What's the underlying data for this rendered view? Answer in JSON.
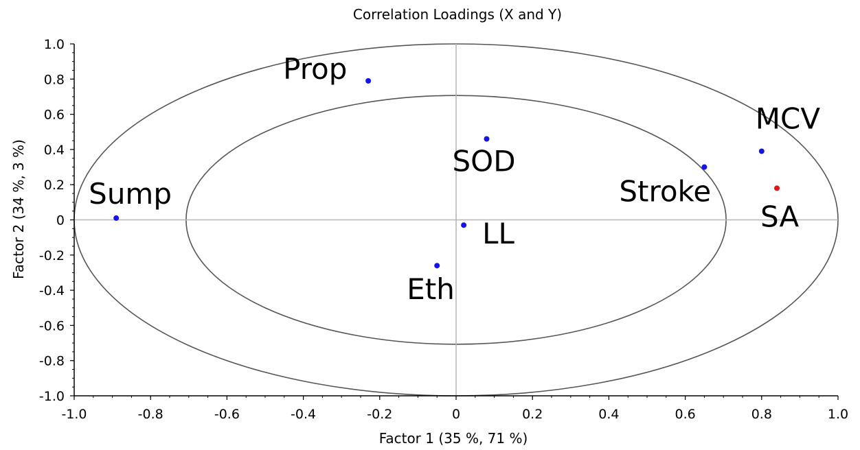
{
  "chart_data": {
    "type": "scatter",
    "title": "Correlation Loadings (X and Y)",
    "xlabel": "Factor 1 (35 %, 71 %)",
    "ylabel": "Factor 2 (34 %, 3 %)",
    "xlim": [
      -1.0,
      1.0
    ],
    "ylim": [
      -1.0,
      1.0
    ],
    "x_ticks": [
      "-1.0",
      "-0.8",
      "-0.6",
      "-0.4",
      "-0.2",
      "0",
      "0.2",
      "0.4",
      "0.6",
      "0.8",
      "1.0"
    ],
    "y_ticks": [
      "1.0",
      "0.8",
      "0.6",
      "0.4",
      "0.2",
      "0",
      "-0.2",
      "-0.4",
      "-0.6",
      "-0.8",
      "-1.0"
    ],
    "grid": false,
    "ellipses": [
      {
        "radius": 1.0
      },
      {
        "radius": 0.707
      }
    ],
    "colors": {
      "x_variable": "#1414e6",
      "y_variable": "#e61414",
      "ellipse": "#555555"
    },
    "points": [
      {
        "label": "Prop",
        "x": -0.23,
        "y": 0.79,
        "kind": "x"
      },
      {
        "label": "SOD",
        "x": 0.08,
        "y": 0.46,
        "kind": "x"
      },
      {
        "label": "MCV",
        "x": 0.8,
        "y": 0.39,
        "kind": "x"
      },
      {
        "label": "Stroke",
        "x": 0.65,
        "y": 0.3,
        "kind": "x"
      },
      {
        "label": "SA",
        "x": 0.84,
        "y": 0.18,
        "kind": "y"
      },
      {
        "label": "Sump",
        "x": -0.89,
        "y": 0.01,
        "kind": "x"
      },
      {
        "label": "LL",
        "x": 0.02,
        "y": -0.03,
        "kind": "x"
      },
      {
        "label": "Eth",
        "x": -0.05,
        "y": -0.26,
        "kind": "x"
      }
    ]
  }
}
